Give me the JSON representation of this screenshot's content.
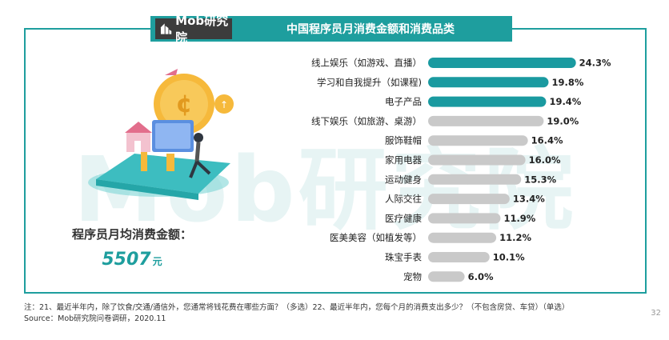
{
  "brand": {
    "name": "Mob研究院"
  },
  "header": {
    "title": "中国程序员月消费金额和消费品类"
  },
  "watermark": {
    "text": "Mob研究院"
  },
  "summary": {
    "label": "程序员月均消费金额：",
    "value": "5507",
    "unit": "元"
  },
  "colors": {
    "accent": "#1e9e9e",
    "teal_bar": "#1a9aa0",
    "gray_bar": "#c9c9c9"
  },
  "chart_data": {
    "type": "bar",
    "orientation": "horizontal",
    "categories": [
      "线上娱乐（如游戏、直播）",
      "学习和自我提升（如课程)",
      "电子产品",
      "线下娱乐（如旅游、桌游）",
      "服饰鞋帽",
      "家用电器",
      "运动健身",
      "人际交往",
      "医疗健康",
      "医美美容（如植发等）",
      "珠宝手表",
      "宠物"
    ],
    "values": [
      24.3,
      19.8,
      19.4,
      19.0,
      16.4,
      16.0,
      15.3,
      13.4,
      11.9,
      11.2,
      10.1,
      6.0
    ],
    "value_labels": [
      "24.3%",
      "19.8%",
      "19.4%",
      "19.0%",
      "16.4%",
      "16.0%",
      "15.3%",
      "13.4%",
      "11.9%",
      "11.2%",
      "10.1%",
      "6.0%"
    ],
    "highlighted_count": 3,
    "unit": "%",
    "xlim": [
      0,
      25
    ]
  },
  "footnote": {
    "line1": "注：21、最近半年内，除了饮食/交通/通信外，您通常将钱花费在哪些方面？（多选）22、最近半年内，您每个月的消费支出多少？（不包含房贷、车贷）（单选）",
    "line2": "Source：Mob研究院问卷调研，2020.11"
  },
  "page_number": "32"
}
